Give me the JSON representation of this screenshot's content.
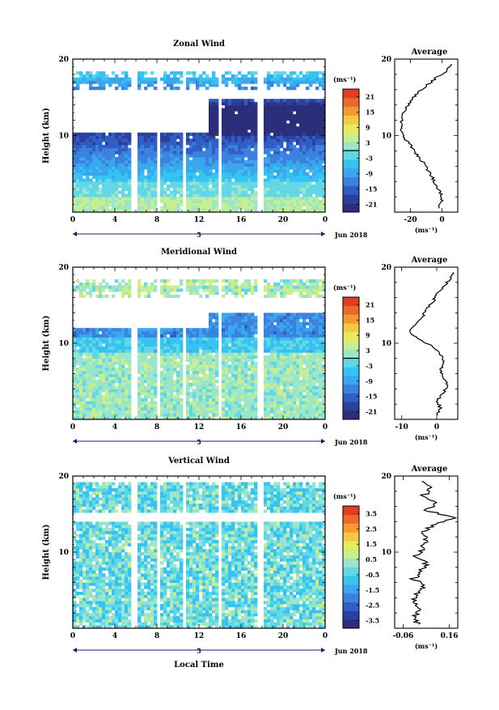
{
  "chart_data": [
    {
      "type": "heatmap",
      "title": "Zonal Wind",
      "ylabel": "Height (km)",
      "ylim": [
        0,
        20
      ],
      "yticks": [
        "10",
        "20"
      ],
      "xticks": [
        "0",
        "4",
        "8",
        "12",
        "16",
        "20",
        "0"
      ],
      "date_label": "5",
      "month_label": "Jun 2018",
      "colorbar": {
        "unit": "(ms⁻¹)",
        "ticks": [
          "21",
          "15",
          "9",
          "3",
          "-3",
          "-9",
          "-15",
          "-21"
        ],
        "range": [
          -24,
          24
        ],
        "zero_line": 0
      },
      "gaps_hours": [
        [
          5.6,
          6.0
        ],
        [
          7.9,
          8.3
        ],
        [
          10.4,
          10.7
        ],
        [
          13.9,
          14.2
        ],
        [
          17.6,
          18.2
        ]
      ],
      "profile_points": [
        [
          -2,
          0.5
        ],
        [
          0,
          1.5
        ],
        [
          -1,
          2.5
        ],
        [
          -4,
          3.5
        ],
        [
          -6,
          4.5
        ],
        [
          -9,
          5.5
        ],
        [
          -12,
          6.5
        ],
        [
          -16,
          7.5
        ],
        [
          -19,
          8.5
        ],
        [
          -23,
          9.5
        ],
        [
          -25,
          10.5
        ],
        [
          -26,
          11.5
        ],
        [
          -25,
          12.5
        ],
        [
          -23,
          13.5
        ],
        [
          -20,
          14.5
        ],
        [
          -16,
          15.5
        ],
        [
          -10,
          16.5
        ],
        [
          -4,
          17.5
        ],
        [
          3,
          18.5
        ],
        [
          8,
          19.5
        ]
      ],
      "average": {
        "title": "Average",
        "xlim": [
          -30,
          10
        ],
        "xticks": [
          "-20",
          "0"
        ],
        "yticks": [
          "10",
          "20"
        ],
        "unit": "(ms⁻¹)"
      }
    },
    {
      "type": "heatmap",
      "title": "Meridional Wind",
      "ylabel": "Height (km)",
      "ylim": [
        0,
        20
      ],
      "yticks": [
        "10",
        "20"
      ],
      "xticks": [
        "0",
        "4",
        "8",
        "12",
        "16",
        "20",
        "0"
      ],
      "date_label": "5",
      "month_label": "Jun 2018",
      "colorbar": {
        "unit": "(ms⁻¹)",
        "ticks": [
          "21",
          "15",
          "9",
          "3",
          "-3",
          "-9",
          "-15",
          "-21"
        ],
        "range": [
          -24,
          24
        ],
        "zero_line": 0
      },
      "gaps_hours": [
        [
          5.6,
          6.0
        ],
        [
          7.9,
          8.3
        ],
        [
          10.4,
          10.7
        ],
        [
          13.9,
          14.2
        ],
        [
          17.6,
          18.2
        ]
      ],
      "profile_points": [
        [
          0,
          0.5
        ],
        [
          1,
          1.5
        ],
        [
          0,
          2.5
        ],
        [
          2,
          3.5
        ],
        [
          3,
          4.5
        ],
        [
          2,
          5.5
        ],
        [
          1,
          6.5
        ],
        [
          2,
          7.5
        ],
        [
          1,
          8.5
        ],
        [
          -1,
          9.5
        ],
        [
          -5,
          10.5
        ],
        [
          -8,
          11.5
        ],
        [
          -6,
          12.5
        ],
        [
          -4,
          13.5
        ],
        [
          -3,
          14.5
        ],
        [
          -1,
          15.5
        ],
        [
          0,
          16.5
        ],
        [
          2,
          17.5
        ],
        [
          4,
          18.5
        ],
        [
          5,
          19.5
        ]
      ],
      "average": {
        "title": "Average",
        "xlim": [
          -12,
          6
        ],
        "xticks": [
          "-10",
          "0"
        ],
        "yticks": [
          "10",
          "20"
        ],
        "unit": "(ms⁻¹)"
      }
    },
    {
      "type": "heatmap",
      "title": "Vertical Wind",
      "xlabel": "Local Time",
      "ylabel": "Height (km)",
      "ylim": [
        0,
        20
      ],
      "yticks": [
        "10",
        "20"
      ],
      "xticks": [
        "0",
        "4",
        "8",
        "12",
        "16",
        "20",
        "0"
      ],
      "date_label": "5",
      "month_label": "Jun 2018",
      "colorbar": {
        "unit": "(ms⁻¹)",
        "ticks": [
          "3.5",
          "2.5",
          "1.5",
          "0.5",
          "-0.5",
          "-1.5",
          "-2.5",
          "-3.5"
        ],
        "range": [
          -4,
          4
        ]
      },
      "gaps_hours": [
        [
          5.6,
          6.0
        ],
        [
          7.9,
          8.3
        ],
        [
          10.4,
          10.7
        ],
        [
          13.9,
          14.2
        ],
        [
          17.6,
          18.2
        ]
      ],
      "profile_points": [
        [
          0.02,
          0.5
        ],
        [
          -0.01,
          1.5
        ],
        [
          0.03,
          2.5
        ],
        [
          -0.02,
          3.5
        ],
        [
          0.01,
          4.5
        ],
        [
          0.04,
          5.5
        ],
        [
          -0.01,
          6.5
        ],
        [
          0.02,
          7.5
        ],
        [
          0.05,
          8.5
        ],
        [
          0.0,
          9.5
        ],
        [
          0.03,
          10.5
        ],
        [
          0.06,
          11.5
        ],
        [
          0.02,
          12.5
        ],
        [
          0.08,
          13.5
        ],
        [
          0.18,
          14.5
        ],
        [
          0.05,
          15.5
        ],
        [
          0.1,
          16.5
        ],
        [
          0.04,
          17.5
        ],
        [
          0.07,
          18.5
        ],
        [
          0.03,
          19.5
        ]
      ],
      "average": {
        "title": "Average",
        "xlim": [
          -0.1,
          0.2
        ],
        "xticks": [
          "-0.06",
          "0.16"
        ],
        "yticks": [
          "10",
          "20"
        ],
        "unit": "(ms⁻¹)"
      }
    }
  ]
}
